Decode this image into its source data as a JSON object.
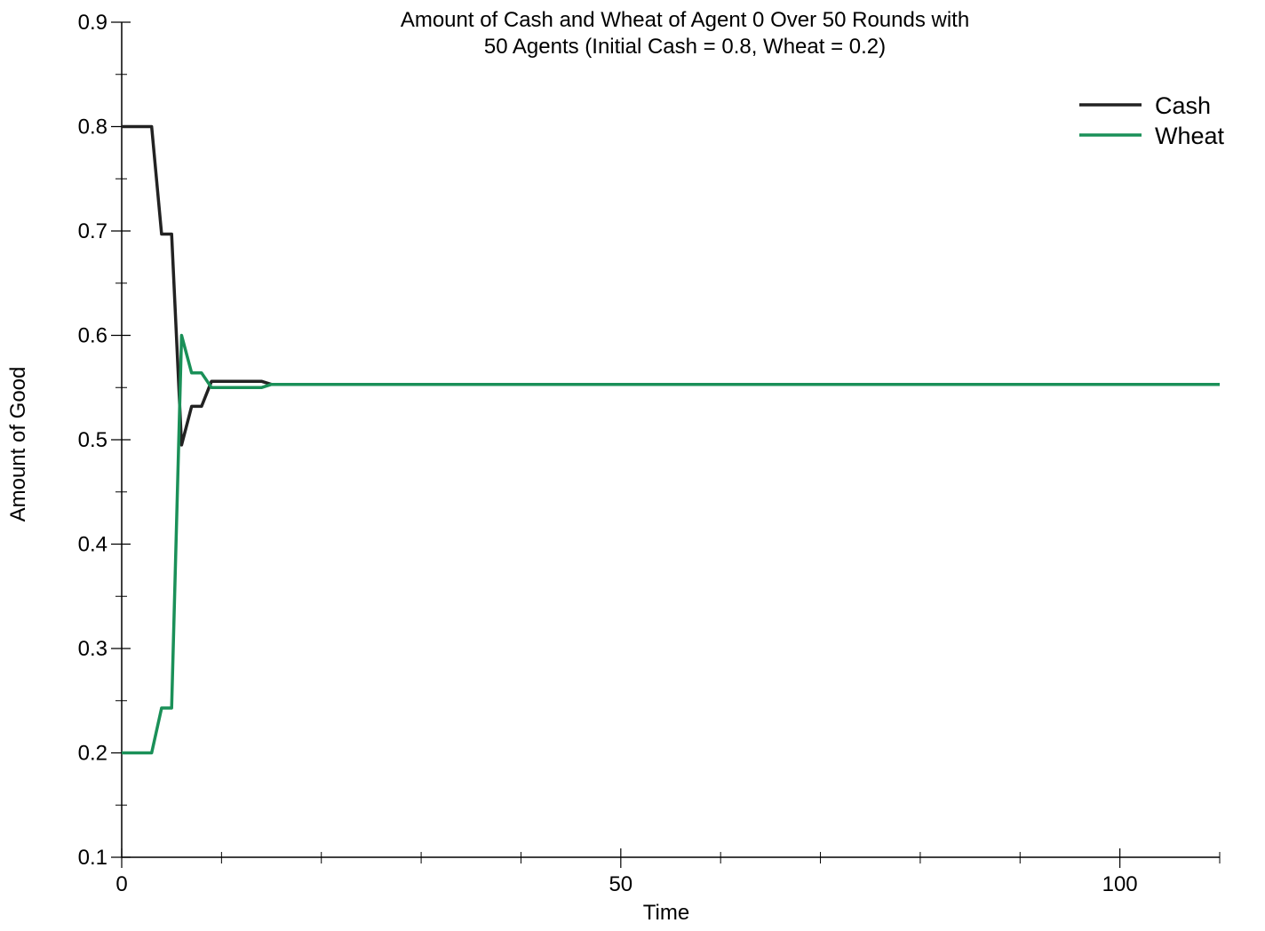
{
  "chart_data": {
    "type": "line",
    "title_lines": [
      "Amount of Cash and Wheat of Agent 0 Over 50 Rounds with",
      "50 Agents (Initial Cash = 0.8, Wheat = 0.2)"
    ],
    "xlabel": "Time",
    "ylabel": "Amount of Good",
    "xlim": [
      0,
      110
    ],
    "ylim": [
      0.1,
      0.9
    ],
    "x_ticks": [
      0,
      50,
      100
    ],
    "x_tick_labels": [
      "0",
      "50",
      "100"
    ],
    "x_minor_ticks": [
      10,
      20,
      30,
      40,
      60,
      70,
      80,
      90,
      110
    ],
    "y_ticks": [
      0.1,
      0.2,
      0.3,
      0.4,
      0.5,
      0.6,
      0.7,
      0.8,
      0.9
    ],
    "y_tick_labels": [
      "0.1",
      "0.2",
      "0.3",
      "0.4",
      "0.5",
      "0.6",
      "0.7",
      "0.8",
      "0.9"
    ],
    "y_minor_ticks": [
      0.15,
      0.25,
      0.35,
      0.45,
      0.55,
      0.65,
      0.75,
      0.85
    ],
    "grid": false,
    "legend_position": "top-right",
    "series": [
      {
        "name": "Cash",
        "color": "#222222",
        "x": [
          0,
          1,
          2,
          3,
          4,
          5,
          6,
          7,
          8,
          9,
          10,
          11,
          12,
          13,
          14,
          15,
          16,
          20,
          40,
          60,
          80,
          100,
          110
        ],
        "y": [
          0.8,
          0.8,
          0.8,
          0.8,
          0.697,
          0.697,
          0.495,
          0.532,
          0.532,
          0.556,
          0.556,
          0.556,
          0.556,
          0.556,
          0.556,
          0.553,
          0.553,
          0.553,
          0.553,
          0.553,
          0.553,
          0.553,
          0.553
        ]
      },
      {
        "name": "Wheat",
        "color": "#1a9058",
        "x": [
          0,
          1,
          2,
          3,
          4,
          5,
          6,
          7,
          8,
          9,
          10,
          11,
          12,
          13,
          14,
          15,
          16,
          20,
          40,
          60,
          80,
          100,
          110
        ],
        "y": [
          0.2,
          0.2,
          0.2,
          0.2,
          0.243,
          0.243,
          0.6,
          0.564,
          0.564,
          0.55,
          0.55,
          0.55,
          0.55,
          0.55,
          0.55,
          0.553,
          0.553,
          0.553,
          0.553,
          0.553,
          0.553,
          0.553,
          0.553
        ]
      }
    ]
  }
}
